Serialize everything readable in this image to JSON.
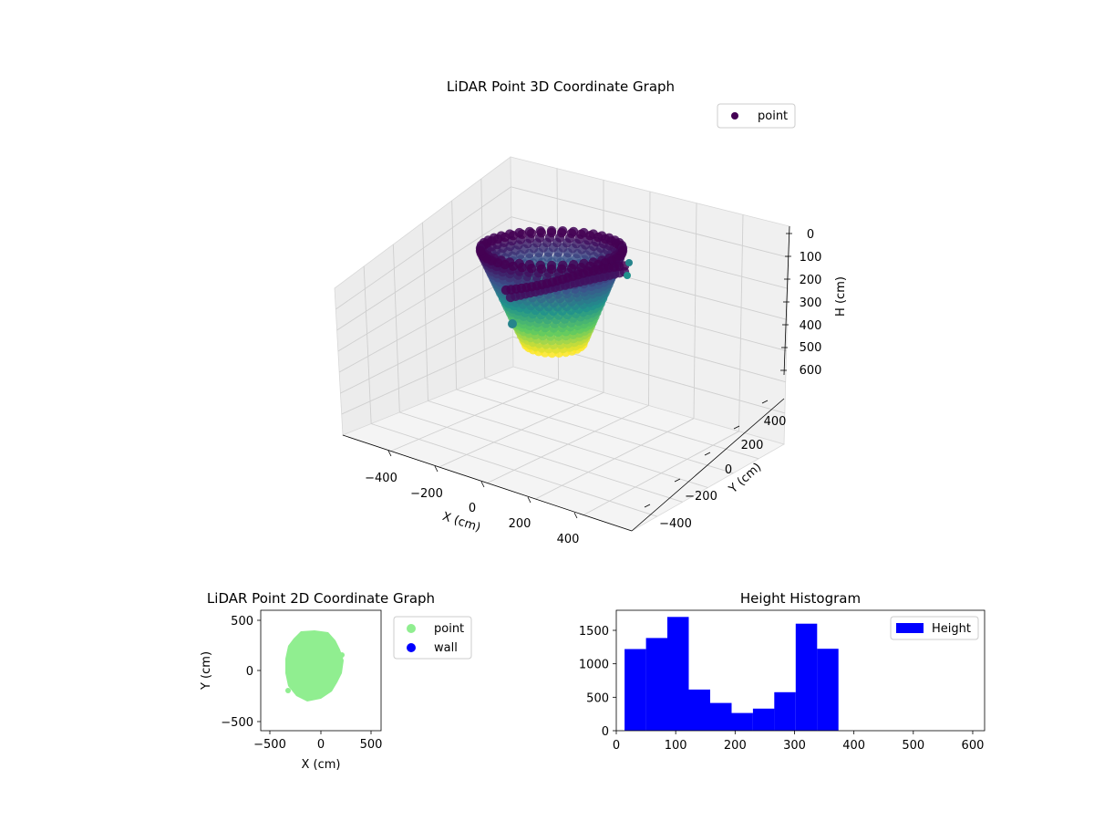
{
  "chart_data": [
    {
      "type": "scatter3d",
      "title": "LiDAR Point 3D Coordinate Graph",
      "xlabel": "X (cm)",
      "ylabel": "Y (cm)",
      "zlabel": "H (cm)",
      "xlim": [
        -500,
        500
      ],
      "ylim": [
        -500,
        500
      ],
      "zlim": [
        0,
        600
      ],
      "z_inverted": true,
      "x_ticks": [
        "−400",
        "−200",
        "0",
        "200",
        "400"
      ],
      "y_ticks": [
        "−400",
        "−200",
        "0",
        "200",
        "400"
      ],
      "z_ticks": [
        "0",
        "100",
        "200",
        "300",
        "400",
        "500",
        "600"
      ],
      "colormap": "viridis",
      "legend": {
        "label": "point",
        "position": "upper-right"
      },
      "grid": true
    },
    {
      "type": "scatter",
      "title": "LiDAR Point 2D Coordinate Graph",
      "xlabel": "X (cm)",
      "ylabel": "Y (cm)",
      "xlim": [
        -600,
        600
      ],
      "ylim": [
        -600,
        600
      ],
      "x_ticks": [
        "−500",
        "0",
        "500"
      ],
      "y_ticks": [
        "−500",
        "0",
        "500"
      ],
      "series": [
        {
          "name": "point",
          "color": "#90ee90"
        },
        {
          "name": "wall",
          "color": "#0000ff"
        }
      ],
      "legend": {
        "position": "outside-right"
      }
    },
    {
      "type": "bar",
      "title": "Height Histogram",
      "xlim": [
        0,
        620
      ],
      "ylim": [
        0,
        1800
      ],
      "x_ticks": [
        "0",
        "100",
        "200",
        "300",
        "400",
        "500",
        "600"
      ],
      "y_ticks": [
        "0",
        "500",
        "1000",
        "1500"
      ],
      "bin_width": 36,
      "bins": [
        {
          "start": 14,
          "value": 1220
        },
        {
          "start": 50,
          "value": 1385
        },
        {
          "start": 86,
          "value": 1700
        },
        {
          "start": 122,
          "value": 615
        },
        {
          "start": 158,
          "value": 415
        },
        {
          "start": 194,
          "value": 265
        },
        {
          "start": 230,
          "value": 330
        },
        {
          "start": 266,
          "value": 575
        },
        {
          "start": 302,
          "value": 1600
        },
        {
          "start": 338,
          "value": 1225
        }
      ],
      "series": [
        {
          "name": "Height",
          "color": "#0000ff"
        }
      ],
      "legend": {
        "position": "upper-right"
      }
    }
  ]
}
